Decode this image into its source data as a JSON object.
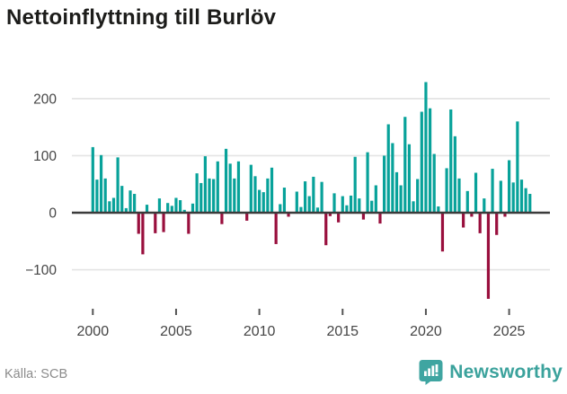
{
  "title": "Nettoinflyttning till Burlöv",
  "source": "Källa: SCB",
  "brand": {
    "name": "Newsworthy",
    "color": "#3ba29c",
    "icon": "bar-chart-speech-bubble"
  },
  "chart_data": {
    "type": "bar",
    "title": "Nettoinflyttning till Burlöv",
    "frequency": "quarterly",
    "start_period": "2000 Q1",
    "end_period": "2026 Q2",
    "xlabel": "",
    "ylabel": "",
    "x_tick_labels": [
      "2000",
      "2005",
      "2010",
      "2015",
      "2020",
      "2025"
    ],
    "y_tick_labels": [
      "200",
      "100",
      "0",
      "−100"
    ],
    "y_ticks": [
      200,
      100,
      0,
      -100
    ],
    "ylim": [
      -160,
      245
    ],
    "grid": "horizontal",
    "legend": "none",
    "positive_color": "#08a29a",
    "negative_color": "#990f3d",
    "zero_line_color": "#3b3b3b",
    "gridline_color": "#e4e4e4",
    "axis_label_color": "#454545",
    "values": [
      115,
      58,
      101,
      60,
      20,
      26,
      97,
      47,
      8,
      39,
      33,
      -37,
      -73,
      14,
      0,
      -36,
      25,
      -34,
      17,
      12,
      26,
      22,
      5,
      -37,
      16,
      69,
      52,
      99,
      60,
      59,
      90,
      -20,
      112,
      86,
      60,
      90,
      0,
      -14,
      84,
      64,
      40,
      36,
      60,
      79,
      -55,
      15,
      44,
      -7,
      0,
      37,
      10,
      55,
      29,
      63,
      9,
      54,
      -57,
      -6,
      34,
      -17,
      29,
      13,
      30,
      98,
      25,
      -12,
      106,
      21,
      48,
      -19,
      100,
      155,
      122,
      71,
      48,
      168,
      120,
      20,
      59,
      177,
      229,
      183,
      103,
      11,
      -68,
      78,
      181,
      134,
      60,
      -26,
      38,
      -7,
      70,
      -36,
      25,
      -151,
      77,
      -39,
      56,
      -7,
      92,
      53,
      160,
      58,
      43,
      33
    ]
  }
}
